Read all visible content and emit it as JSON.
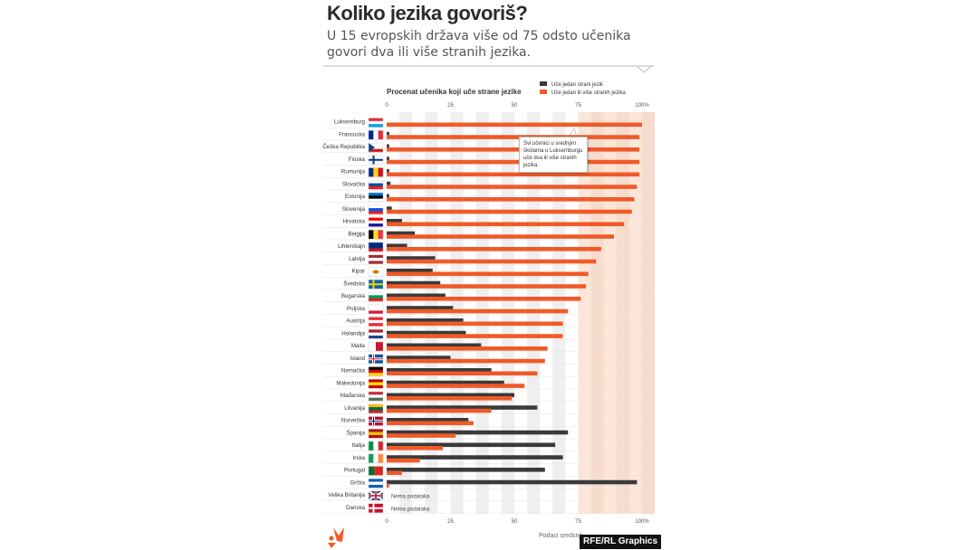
{
  "title": "Koliko jezika govoriš?",
  "subtitle": "U 15 evropskih država više od 75 odsto učenika govori dva ili više stranih jezika.",
  "credit": "RFE/RL Graphics",
  "source": "Podaci sredsnji",
  "callout": "Svi učenici u srednjim školama u Luksemburgu uče dva ili više stranih jezika.",
  "no_data_label": "Nema podataka",
  "colors": {
    "one_language": "#3a3a3a",
    "two_or_more": "#f05a28",
    "highlight_band": "#fbe6d9",
    "grid_band": "#efefef"
  },
  "chart_data": {
    "type": "bar",
    "title": "Procenat učenika koji uče strane jezike",
    "xlim": [
      0,
      100
    ],
    "highlight_from": 75,
    "ticks": [
      {
        "value": 0,
        "label": "0"
      },
      {
        "value": 25,
        "label": "25"
      },
      {
        "value": 50,
        "label": "50"
      },
      {
        "value": 75,
        "label": "75"
      },
      {
        "value": 100,
        "label": "100%"
      }
    ],
    "categories": [
      "Luksemburg",
      "Francuska",
      "Češka Republika",
      "Finska",
      "Rumunija",
      "Slovačka",
      "Estonija",
      "Slovenija",
      "Hrvatska",
      "Belgija",
      "Lihtenštajn",
      "Latvija",
      "Kipar",
      "Švedska",
      "Bugarska",
      "Poljska",
      "Austrija",
      "Holandija",
      "Malta",
      "Island",
      "Nemačka",
      "Makedonija",
      "Mađarska",
      "Litvanija",
      "Norveška",
      "Španija",
      "Italija",
      "Irska",
      "Portugal",
      "Grčka",
      "Velika Britanija",
      "Danska"
    ],
    "series": [
      {
        "name": "Uče jedan strani jezik",
        "values": [
          0,
          1,
          1,
          1,
          1,
          1.5,
          1,
          2,
          6,
          11,
          8,
          19,
          18,
          21,
          23,
          26,
          30,
          31,
          37,
          25,
          41,
          46,
          50,
          59,
          32,
          71,
          66,
          69,
          62,
          98,
          null,
          null
        ]
      },
      {
        "name": "Uče jedan ili više stranih jezika",
        "values": [
          100,
          99,
          99,
          99,
          99,
          98,
          97,
          96,
          93,
          89,
          84,
          82,
          79,
          78,
          76,
          71,
          69,
          69,
          63,
          62,
          59,
          54,
          49,
          41,
          34,
          27,
          22,
          13,
          6,
          1,
          null,
          null
        ]
      }
    ]
  }
}
